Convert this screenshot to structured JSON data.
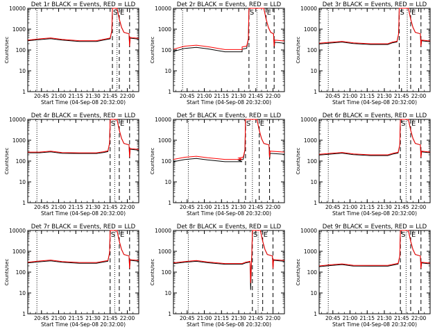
{
  "figure": {
    "colors": {
      "events": "#000000",
      "lld": "#ff0000",
      "background": "#ffffff",
      "axes": "#000000"
    }
  },
  "chart_data": [
    {
      "type": "line",
      "panel": "det1r",
      "title": "Det 1r BLACK = Events, RED = LLD",
      "xlabel": "Start Time (04-Sep-08 20:32:00)",
      "ylabel": "Counts/sec",
      "yscale": "log",
      "ylim": [
        1,
        10000
      ],
      "xlim": [
        "20:33",
        "22:10"
      ],
      "x_ticks": [
        "20:45",
        "21:00",
        "21:15",
        "21:30",
        "21:45",
        "22:00"
      ],
      "y_ticks": [
        "1",
        "10",
        "100",
        "1000",
        "10000"
      ],
      "vlines": [
        {
          "time": "20:41",
          "style": "dotted"
        },
        {
          "time": "21:47",
          "style": "dashed",
          "label": "S"
        },
        {
          "time": "21:51",
          "style": "dotted"
        },
        {
          "time": "21:53",
          "style": "dashed",
          "label": "E"
        },
        {
          "time": "22:02",
          "style": "dashed"
        }
      ],
      "series": [
        {
          "name": "Events",
          "color": "#000000",
          "profile": "near",
          "low_dip": 0
        },
        {
          "name": "LLD",
          "color": "#ff0000",
          "profile": "base",
          "low_dip": 0
        }
      ],
      "base": {
        "start": 300,
        "hump": 380,
        "mid": 280,
        "end": 340,
        "peak": 15000,
        "after": 400,
        "dip": 150
      }
    },
    {
      "type": "line",
      "panel": "det2r",
      "title": "Det 2r BLACK = Events, RED = LLD",
      "xlabel": "Start Time (04-Sep-08 20:32:00)",
      "ylabel": "Counts/sec",
      "yscale": "log",
      "ylim": [
        1,
        10000
      ],
      "xlim": [
        "20:33",
        "22:10"
      ],
      "x_ticks": [
        "20:45",
        "21:00",
        "21:15",
        "21:30",
        "21:45",
        "22:00"
      ],
      "y_ticks": [
        "1",
        "10",
        "100",
        "1000",
        "10000"
      ],
      "vlines": [
        {
          "time": "20:41",
          "style": "dotted"
        },
        {
          "time": "21:39",
          "style": "dashed",
          "label": "S"
        },
        {
          "time": "21:46",
          "style": "dotted"
        },
        {
          "time": "21:54",
          "style": "dashed",
          "label": "E"
        },
        {
          "time": "22:01",
          "style": "dashed"
        }
      ],
      "series": [
        {
          "name": "Events",
          "color": "#000000",
          "profile": "lower",
          "low_dip": 0
        },
        {
          "name": "LLD",
          "color": "#ff0000",
          "profile": "base",
          "low_dip": 0
        }
      ],
      "base": {
        "start": 110,
        "hump": 170,
        "mid": 105,
        "end": 140,
        "peak": 15000,
        "after": 300,
        "dip": 150
      }
    },
    {
      "type": "line",
      "panel": "det3r",
      "title": "Det 3r BLACK = Events, RED = LLD",
      "xlabel": "Start Time (04-Sep-08 20:32:00)",
      "ylabel": "Counts/sec",
      "yscale": "log",
      "ylim": [
        1,
        10000
      ],
      "xlim": [
        "20:33",
        "22:10"
      ],
      "x_ticks": [
        "20:45",
        "21:00",
        "21:15",
        "21:30",
        "21:45",
        "22:00"
      ],
      "y_ticks": [
        "1",
        "10",
        "100",
        "1000",
        "10000"
      ],
      "vlines": [
        {
          "time": "20:41",
          "style": "dotted"
        },
        {
          "time": "21:43",
          "style": "dashed",
          "label": "S"
        },
        {
          "time": "21:50",
          "style": "dotted"
        },
        {
          "time": "21:53",
          "style": "dashed",
          "label": "E"
        },
        {
          "time": "22:02",
          "style": "dashed"
        }
      ],
      "series": [
        {
          "name": "Events",
          "color": "#000000",
          "profile": "near",
          "low_dip": 0
        },
        {
          "name": "LLD",
          "color": "#ff0000",
          "profile": "base",
          "low_dip": 0
        }
      ],
      "base": {
        "start": 210,
        "hump": 260,
        "mid": 200,
        "end": 240,
        "peak": 15000,
        "after": 300,
        "dip": 150
      }
    },
    {
      "type": "line",
      "panel": "det4r",
      "title": "Det 4r BLACK = Events, RED = LLD",
      "xlabel": "Start Time (04-Sep-08 20:32:00)",
      "ylabel": "Counts/sec",
      "yscale": "log",
      "ylim": [
        1,
        10000
      ],
      "xlim": [
        "20:33",
        "22:10"
      ],
      "x_ticks": [
        "20:45",
        "21:00",
        "21:15",
        "21:30",
        "21:45",
        "22:00"
      ],
      "y_ticks": [
        "1",
        "10",
        "100",
        "1000",
        "10000"
      ],
      "vlines": [
        {
          "time": "20:41",
          "style": "dotted"
        },
        {
          "time": "21:45",
          "style": "dashed",
          "label": "S"
        },
        {
          "time": "21:49",
          "style": "dotted"
        },
        {
          "time": "21:53",
          "style": "dashed",
          "label": "E"
        },
        {
          "time": "22:02",
          "style": "dashed"
        }
      ],
      "series": [
        {
          "name": "Events",
          "color": "#000000",
          "profile": "near",
          "low_dip": 0
        },
        {
          "name": "LLD",
          "color": "#ff0000",
          "profile": "base",
          "low_dip": 0
        }
      ],
      "base": {
        "start": 270,
        "hump": 300,
        "mid": 250,
        "end": 280,
        "peak": 15000,
        "after": 400,
        "dip": 150
      }
    },
    {
      "type": "line",
      "panel": "det5r",
      "title": "Det 5r BLACK = Events, RED = LLD",
      "xlabel": "Start Time (04-Sep-08 20:32:00)",
      "ylabel": "Counts/sec",
      "yscale": "log",
      "ylim": [
        1,
        10000
      ],
      "xlim": [
        "20:33",
        "22:10"
      ],
      "x_ticks": [
        "20:45",
        "21:00",
        "21:15",
        "21:30",
        "21:45",
        "22:00"
      ],
      "y_ticks": [
        "1",
        "10",
        "100",
        "1000",
        "10000"
      ],
      "vlines": [
        {
          "time": "20:46",
          "style": "dotted"
        },
        {
          "time": "21:36",
          "style": "dashed",
          "label": "S"
        },
        {
          "time": "21:42",
          "style": "dotted"
        },
        {
          "time": "21:48",
          "style": "dashed",
          "label": "E"
        },
        {
          "time": "21:57",
          "style": "dashed"
        }
      ],
      "series": [
        {
          "name": "Events",
          "color": "#000000",
          "profile": "lower",
          "low_dip": 0
        },
        {
          "name": "LLD",
          "color": "#ff0000",
          "profile": "base",
          "low_dip": 0
        }
      ],
      "base": {
        "start": 120,
        "hump": 170,
        "mid": 120,
        "end": 140,
        "peak": 15000,
        "after": 300,
        "dip": 150
      }
    },
    {
      "type": "line",
      "panel": "det6r",
      "title": "Det 6r BLACK = Events, RED = LLD",
      "xlabel": "Start Time (04-Sep-08 20:32:00)",
      "ylabel": "Counts/sec",
      "yscale": "log",
      "ylim": [
        1,
        10000
      ],
      "xlim": [
        "20:33",
        "22:10"
      ],
      "x_ticks": [
        "20:45",
        "21:00",
        "21:15",
        "21:30",
        "21:45",
        "22:00"
      ],
      "y_ticks": [
        "1",
        "10",
        "100",
        "1000",
        "10000"
      ],
      "vlines": [
        {
          "time": "20:41",
          "style": "dotted"
        },
        {
          "time": "21:44",
          "style": "dashed",
          "label": "S"
        },
        {
          "time": "21:49",
          "style": "dotted"
        },
        {
          "time": "21:53",
          "style": "dashed",
          "label": "E"
        },
        {
          "time": "22:02",
          "style": "dashed"
        }
      ],
      "series": [
        {
          "name": "Events",
          "color": "#000000",
          "profile": "near",
          "low_dip": 0
        },
        {
          "name": "LLD",
          "color": "#ff0000",
          "profile": "base",
          "low_dip": 0
        }
      ],
      "base": {
        "start": 210,
        "hump": 260,
        "mid": 200,
        "end": 240,
        "peak": 15000,
        "after": 300,
        "dip": 150
      }
    },
    {
      "type": "line",
      "panel": "det7r",
      "title": "Det 7r BLACK = Events, RED = LLD",
      "xlabel": "Start Time (04-Sep-08 20:32:00)",
      "ylabel": "Counts/sec",
      "yscale": "log",
      "ylim": [
        1,
        10000
      ],
      "xlim": [
        "20:33",
        "22:10"
      ],
      "x_ticks": [
        "20:45",
        "21:00",
        "21:15",
        "21:30",
        "21:45",
        "22:00"
      ],
      "y_ticks": [
        "1",
        "10",
        "100",
        "1000",
        "10000"
      ],
      "vlines": [
        {
          "time": "20:41",
          "style": "dotted"
        },
        {
          "time": "21:45",
          "style": "dashed",
          "label": "S"
        },
        {
          "time": "21:49",
          "style": "dotted"
        },
        {
          "time": "21:53",
          "style": "dashed",
          "label": "E"
        },
        {
          "time": "22:02",
          "style": "dashed"
        }
      ],
      "series": [
        {
          "name": "Events",
          "color": "#000000",
          "profile": "near",
          "low_dip": 0
        },
        {
          "name": "LLD",
          "color": "#ff0000",
          "profile": "base",
          "low_dip": 0
        }
      ],
      "base": {
        "start": 300,
        "hump": 380,
        "mid": 290,
        "end": 330,
        "peak": 15000,
        "after": 400,
        "dip": 150
      }
    },
    {
      "type": "line",
      "panel": "det8r",
      "title": "Det 8r BLACK = Events, RED = LLD",
      "xlabel": "Start Time (04-Sep-08 20:32:00)",
      "ylabel": "Counts/sec",
      "yscale": "log",
      "ylim": [
        1,
        10000
      ],
      "xlim": [
        "20:33",
        "22:10"
      ],
      "x_ticks": [
        "20:45",
        "21:00",
        "21:15",
        "21:30",
        "21:45",
        "22:00"
      ],
      "y_ticks": [
        "1",
        "10",
        "100",
        "1000",
        "10000"
      ],
      "vlines": [
        {
          "time": "20:46",
          "style": "dotted"
        },
        {
          "time": "21:42",
          "style": "dashed",
          "label": "S"
        },
        {
          "time": "21:47",
          "style": "dotted"
        },
        {
          "time": "21:51",
          "style": "dashed",
          "label": "E"
        },
        {
          "time": "22:00",
          "style": "dashed"
        }
      ],
      "series": [
        {
          "name": "Events",
          "color": "#000000",
          "profile": "near",
          "low_dip": 14
        },
        {
          "name": "LLD",
          "color": "#ff0000",
          "profile": "base",
          "low_dip": 30
        }
      ],
      "base": {
        "start": 280,
        "hump": 360,
        "mid": 260,
        "end": 300,
        "peak": 15000,
        "after": 400,
        "dip": 150
      }
    },
    {
      "type": "line",
      "panel": "det9r",
      "title": "Det 9r BLACK = Events, RED = LLD",
      "xlabel": "Start Time (04-Sep-08 20:32:00)",
      "ylabel": "Counts/sec",
      "yscale": "log",
      "ylim": [
        1,
        10000
      ],
      "xlim": [
        "20:33",
        "22:10"
      ],
      "x_ticks": [
        "20:45",
        "21:00",
        "21:15",
        "21:30",
        "21:45",
        "22:00"
      ],
      "y_ticks": [
        "1",
        "10",
        "100",
        "1000",
        "10000"
      ],
      "vlines": [
        {
          "time": "20:41",
          "style": "dotted"
        },
        {
          "time": "21:44",
          "style": "dashed",
          "label": "S"
        },
        {
          "time": "21:49",
          "style": "dotted"
        },
        {
          "time": "21:53",
          "style": "dashed",
          "label": "E"
        },
        {
          "time": "22:02",
          "style": "dashed"
        }
      ],
      "series": [
        {
          "name": "Events",
          "color": "#000000",
          "profile": "near",
          "low_dip": 0
        },
        {
          "name": "LLD",
          "color": "#ff0000",
          "profile": "base",
          "low_dip": 0
        }
      ],
      "base": {
        "start": 200,
        "hump": 250,
        "mid": 210,
        "end": 240,
        "peak": 15000,
        "after": 300,
        "dip": 150
      }
    }
  ]
}
